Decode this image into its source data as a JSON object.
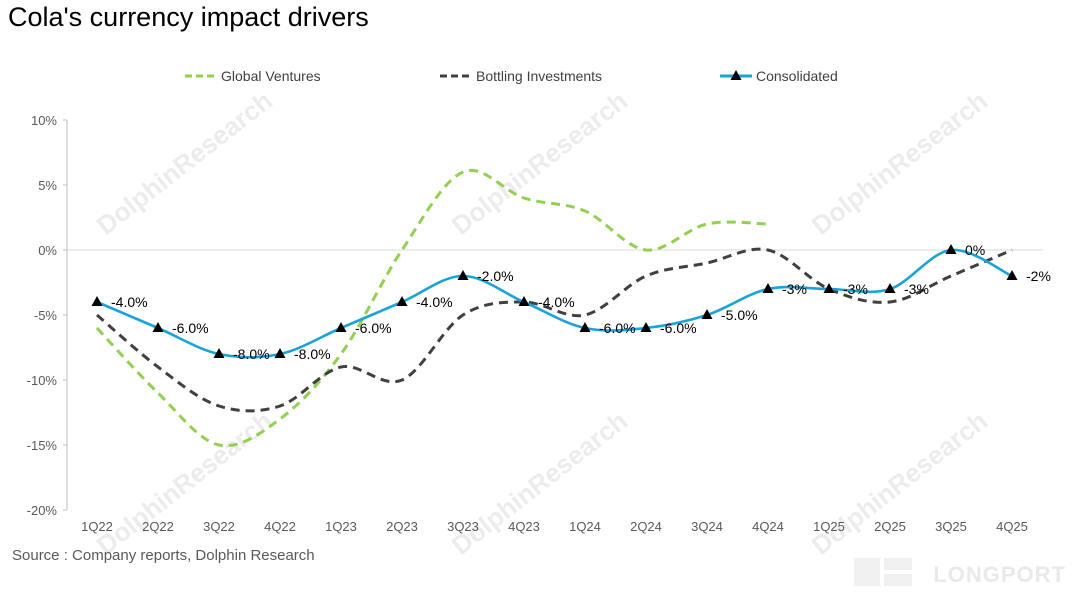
{
  "title": "Cola's currency impact drivers",
  "source": "Source : Company reports, Dolphin Research",
  "watermark": "DolphinResearch",
  "footer_brand": "LONGPORT",
  "colors": {
    "global_ventures": "#92d050",
    "bottling_investments": "#404040",
    "consolidated": "#1aa3d9",
    "grid": "#d9d9d9",
    "axis_text": "#595959"
  },
  "chart_data": {
    "type": "line",
    "title": "Cola's currency impact drivers",
    "xlabel": "",
    "ylabel": "",
    "legend_position": "top",
    "categories": [
      "1Q22",
      "2Q22",
      "3Q22",
      "4Q22",
      "1Q23",
      "2Q23",
      "3Q23",
      "4Q23",
      "1Q24",
      "2Q24",
      "3Q24",
      "4Q24",
      "1Q25",
      "2Q25",
      "3Q25",
      "4Q25"
    ],
    "y_ticks": [
      "10%",
      "5%",
      "0%",
      "-5%",
      "-10%",
      "-15%",
      "-20%"
    ],
    "ylim": [
      -20,
      10
    ],
    "grid": "zero-line only",
    "series": [
      {
        "name": "Global Ventures",
        "style": "dashed",
        "values": [
          -6,
          -11,
          -15,
          -13,
          -8,
          0,
          6,
          4,
          3,
          0,
          2,
          2,
          null,
          null,
          null,
          null
        ]
      },
      {
        "name": "Bottling Investments",
        "style": "dashed",
        "values": [
          -5,
          -9,
          -12,
          -12,
          -9,
          -10,
          -5,
          -4,
          -5,
          -2,
          -1,
          0,
          -3,
          -4,
          -2,
          0
        ]
      },
      {
        "name": "Consolidated",
        "style": "solid-with-triangle-markers",
        "values": [
          -4,
          -6,
          -8,
          -8,
          -6,
          -4,
          -2,
          -4,
          -6,
          -6,
          -5,
          -3,
          -3,
          -3,
          0,
          -2
        ],
        "labels": [
          "-4.0%",
          "-6.0%",
          "-8.0%",
          "-8.0%",
          "-6.0%",
          "-4.0%",
          "-2.0%",
          "-4.0%",
          "-6.0%",
          "-6.0%",
          "-5.0%",
          "-3%",
          "-3%",
          "-3%",
          "0%",
          "-2%"
        ]
      }
    ]
  }
}
